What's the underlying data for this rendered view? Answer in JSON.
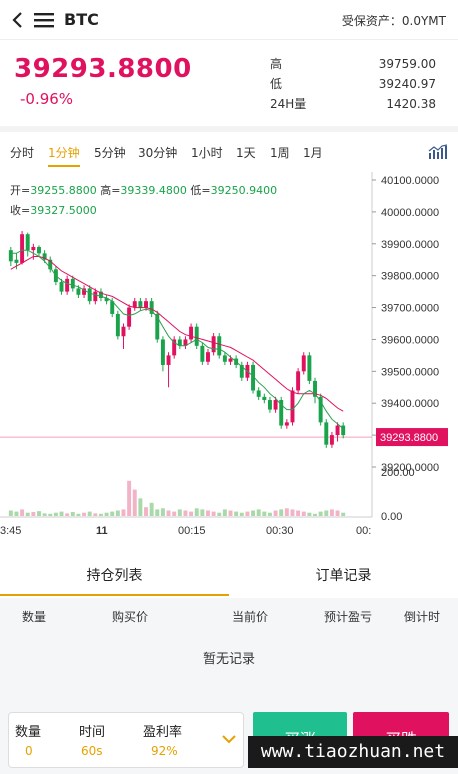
{
  "header": {
    "symbol": "BTC",
    "assets_label": "受保资产：0.0YMT"
  },
  "price": {
    "last": "39293.8800",
    "change": "-0.96%",
    "stats": [
      {
        "label": "高",
        "value": "39759.00"
      },
      {
        "label": "低",
        "value": "39240.97"
      },
      {
        "label": "24H量",
        "value": "1420.38"
      }
    ]
  },
  "periods": [
    "分时",
    "1分钟",
    "5分钟",
    "30分钟",
    "1小时",
    "1天",
    "1周",
    "1月"
  ],
  "active_period": "1分钟",
  "ohlc": {
    "open_label": "开=",
    "open": "39255.8800",
    "high_label": "高=",
    "high": "39339.4800",
    "low_label": "低=",
    "low": "39250.9400",
    "close_label": "收=",
    "close": "39327.5000"
  },
  "chart_data": {
    "type": "candlestick",
    "y_ticks": [
      "40100.0000",
      "40000.0000",
      "39900.0000",
      "39800.0000",
      "39700.0000",
      "39600.0000",
      "39500.0000",
      "39400.0000",
      "39300.0000",
      "39200.0000"
    ],
    "ylim": [
      39200,
      40100
    ],
    "current_price_label": "39293.8800",
    "current_price": 39293.88,
    "volume_ticks": [
      "200.00",
      "0.00"
    ],
    "x_ticks": [
      "3:45",
      "11",
      "00:15",
      "00:30",
      "00:"
    ],
    "candles": [
      [
        39880,
        39845,
        39890,
        39830
      ],
      [
        39850,
        39840,
        39870,
        39820
      ],
      [
        39840,
        39930,
        39940,
        39835
      ],
      [
        39930,
        39880,
        39935,
        39860
      ],
      [
        39880,
        39890,
        39900,
        39850
      ],
      [
        39890,
        39870,
        39895,
        39860
      ],
      [
        39870,
        39850,
        39880,
        39840
      ],
      [
        39850,
        39820,
        39860,
        39810
      ],
      [
        39820,
        39780,
        39830,
        39770
      ],
      [
        39780,
        39750,
        39790,
        39740
      ],
      [
        39750,
        39790,
        39800,
        39740
      ],
      [
        39790,
        39760,
        39800,
        39750
      ],
      [
        39760,
        39740,
        39770,
        39730
      ],
      [
        39740,
        39760,
        39770,
        39730
      ],
      [
        39760,
        39720,
        39770,
        39710
      ],
      [
        39720,
        39750,
        39760,
        39710
      ],
      [
        39750,
        39730,
        39760,
        39720
      ],
      [
        39730,
        39720,
        39740,
        39710
      ],
      [
        39720,
        39680,
        39730,
        39670
      ],
      [
        39680,
        39610,
        39690,
        39600
      ],
      [
        39610,
        39640,
        39650,
        39570
      ],
      [
        39640,
        39700,
        39710,
        39630
      ],
      [
        39700,
        39720,
        39730,
        39690
      ],
      [
        39720,
        39700,
        39730,
        39690
      ],
      [
        39700,
        39720,
        39730,
        39690
      ],
      [
        39720,
        39680,
        39730,
        39670
      ],
      [
        39680,
        39600,
        39690,
        39590
      ],
      [
        39600,
        39520,
        39610,
        39500
      ],
      [
        39520,
        39550,
        39560,
        39450
      ],
      [
        39550,
        39600,
        39610,
        39540
      ],
      [
        39600,
        39580,
        39610,
        39570
      ],
      [
        39580,
        39600,
        39610,
        39570
      ],
      [
        39600,
        39640,
        39650,
        39590
      ],
      [
        39640,
        39580,
        39650,
        39570
      ],
      [
        39580,
        39530,
        39590,
        39520
      ],
      [
        39530,
        39560,
        39570,
        39520
      ],
      [
        39560,
        39610,
        39620,
        39550
      ],
      [
        39610,
        39550,
        39620,
        39540
      ],
      [
        39550,
        39530,
        39560,
        39520
      ],
      [
        39530,
        39540,
        39550,
        39520
      ],
      [
        39540,
        39520,
        39550,
        39510
      ],
      [
        39520,
        39480,
        39530,
        39470
      ],
      [
        39480,
        39520,
        39530,
        39470
      ],
      [
        39520,
        39440,
        39530,
        39430
      ],
      [
        39440,
        39420,
        39450,
        39410
      ],
      [
        39420,
        39410,
        39430,
        39400
      ],
      [
        39410,
        39380,
        39420,
        39370
      ],
      [
        39380,
        39410,
        39420,
        39370
      ],
      [
        39410,
        39330,
        39420,
        39320
      ],
      [
        39330,
        39340,
        39350,
        39320
      ],
      [
        39340,
        39440,
        39450,
        39330
      ],
      [
        39440,
        39500,
        39510,
        39430
      ],
      [
        39500,
        39550,
        39560,
        39490
      ],
      [
        39550,
        39470,
        39560,
        39460
      ],
      [
        39470,
        39420,
        39480,
        39400
      ],
      [
        39420,
        39340,
        39430,
        39330
      ],
      [
        39340,
        39270,
        39350,
        39260
      ],
      [
        39270,
        39300,
        39310,
        39260
      ],
      [
        39300,
        39330,
        39340,
        39280
      ],
      [
        39330,
        39300,
        39340,
        39290
      ]
    ],
    "ma_fast": [
      39870,
      39870,
      39880,
      39880,
      39870,
      39860,
      39845,
      39825,
      39800,
      39785,
      39775,
      39770,
      39765,
      39755,
      39745,
      39740,
      39735,
      39730,
      39720,
      39700,
      39680,
      39675,
      39680,
      39690,
      39695,
      39690,
      39670,
      39640,
      39610,
      39590,
      39580,
      39580,
      39590,
      39600,
      39590,
      39575,
      39570,
      39570,
      39560,
      39545,
      39530,
      39515,
      39500,
      39485,
      39465,
      39450,
      39430,
      39415,
      39395,
      39380,
      39380,
      39400,
      39430,
      39440,
      39430,
      39405,
      39375,
      39350,
      39335,
      39320
    ],
    "ma_slow": [
      39820,
      39830,
      39840,
      39850,
      39860,
      39860,
      39855,
      39845,
      39830,
      39815,
      39805,
      39795,
      39785,
      39775,
      39765,
      39755,
      39745,
      39740,
      39735,
      39725,
      39715,
      39705,
      39700,
      39700,
      39700,
      39695,
      39685,
      39670,
      39655,
      39640,
      39625,
      39615,
      39610,
      39605,
      39600,
      39595,
      39590,
      39585,
      39580,
      39575,
      39565,
      39555,
      39545,
      39535,
      39520,
      39505,
      39490,
      39475,
      39460,
      39445,
      39435,
      39430,
      39430,
      39430,
      39430,
      39425,
      39415,
      39400,
      39385,
      39375
    ],
    "volumes": [
      25,
      20,
      30,
      15,
      18,
      22,
      12,
      10,
      15,
      20,
      12,
      18,
      10,
      15,
      20,
      12,
      10,
      15,
      20,
      25,
      30,
      160,
      120,
      80,
      40,
      60,
      30,
      35,
      25,
      20,
      30,
      25,
      20,
      35,
      30,
      25,
      20,
      15,
      30,
      25,
      20,
      15,
      20,
      25,
      30,
      20,
      15,
      25,
      30,
      35,
      30,
      25,
      20,
      15,
      10,
      20,
      25,
      30,
      25,
      15
    ]
  },
  "tabs": [
    "持仓列表",
    "订单记录"
  ],
  "table": {
    "headers": [
      "数量",
      "购买价",
      "当前价",
      "预计盈亏",
      "倒计时"
    ],
    "empty": "暂无记录"
  },
  "order": {
    "qty_label": "数量",
    "qty": "0",
    "time_label": "时间",
    "time": "60s",
    "rate_label": "盈利率",
    "rate": "92%",
    "buy_up": "买涨",
    "buy_down": "买跌"
  },
  "watermark": "www.tiaozhuan.net",
  "colors": {
    "up": "#e0115f",
    "down": "#1aa34a",
    "accent": "#e6a100",
    "ma_fast": "#2e9e4e",
    "ma_slow": "#e0115f"
  }
}
